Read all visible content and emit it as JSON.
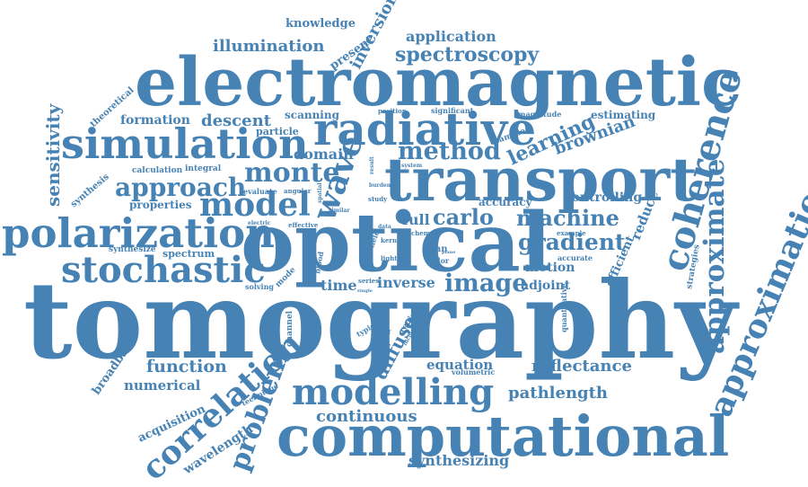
{
  "palette": {
    "word": "#4682b4",
    "background": "#ffffff"
  },
  "words": [
    {
      "text": "tomography",
      "weight": 100
    },
    {
      "text": "optical",
      "weight": 76
    },
    {
      "text": "electromagnetic",
      "weight": 62
    },
    {
      "text": "transport",
      "weight": 56
    },
    {
      "text": "computational",
      "weight": 52
    },
    {
      "text": "radiative",
      "weight": 44
    },
    {
      "text": "simulation",
      "weight": 40
    },
    {
      "text": "polarization",
      "weight": 39
    },
    {
      "text": "stochastic",
      "weight": 36
    },
    {
      "text": "modelling",
      "weight": 36
    },
    {
      "text": "coherence",
      "weight": 35
    },
    {
      "text": "correlation",
      "weight": 33
    },
    {
      "text": "approximation",
      "weight": 33
    },
    {
      "text": "approximate",
      "weight": 30
    },
    {
      "text": "problem",
      "weight": 30
    },
    {
      "text": "wave",
      "weight": 30
    },
    {
      "text": "model",
      "weight": 30
    },
    {
      "text": "approach",
      "weight": 28
    },
    {
      "text": "monte",
      "weight": 26
    },
    {
      "text": "method",
      "weight": 26
    },
    {
      "text": "image",
      "weight": 25
    },
    {
      "text": "gradient",
      "weight": 24
    },
    {
      "text": "machine",
      "weight": 23
    },
    {
      "text": "carlo",
      "weight": 22
    },
    {
      "text": "spectroscopy",
      "weight": 20
    },
    {
      "text": "learning",
      "weight": 20
    },
    {
      "text": "sensitivity",
      "weight": 18
    },
    {
      "text": "diffuse",
      "weight": 18
    },
    {
      "text": "function",
      "weight": 18
    },
    {
      "text": "continuous",
      "weight": 17
    },
    {
      "text": "descent",
      "weight": 17
    },
    {
      "text": "illumination",
      "weight": 17
    },
    {
      "text": "inversion",
      "weight": 17
    },
    {
      "text": "brownian",
      "weight": 17
    },
    {
      "text": "reflectance",
      "weight": 17
    },
    {
      "text": "pathlength",
      "weight": 17
    },
    {
      "text": "synthesizing",
      "weight": 15
    },
    {
      "text": "application",
      "weight": 15
    },
    {
      "text": "domain",
      "weight": 15
    },
    {
      "text": "full",
      "weight": 15
    },
    {
      "text": "inverse",
      "weight": 15
    },
    {
      "text": "time",
      "weight": 15
    },
    {
      "text": "numerical",
      "weight": 14
    },
    {
      "text": "equation",
      "weight": 14
    },
    {
      "text": "reduce",
      "weight": 14
    },
    {
      "text": "motion",
      "weight": 14
    },
    {
      "text": "wavelength",
      "weight": 13
    },
    {
      "text": "formation",
      "weight": 13
    },
    {
      "text": "adjoint",
      "weight": 13
    },
    {
      "text": "controlling",
      "weight": 13
    },
    {
      "text": "efficient",
      "weight": 13
    },
    {
      "text": "knowledge",
      "weight": 12
    },
    {
      "text": "present",
      "weight": 12
    },
    {
      "text": "acquisition",
      "weight": 12
    },
    {
      "text": "broadband",
      "weight": 12
    },
    {
      "text": "scanning",
      "weight": 12
    },
    {
      "text": "estimating",
      "weight": 12
    },
    {
      "text": "accuracy",
      "weight": 12
    },
    {
      "text": "particle",
      "weight": 11
    },
    {
      "text": "properties",
      "weight": 11
    },
    {
      "text": "spectrum",
      "weight": 11
    },
    {
      "text": "synthesis",
      "weight": 10
    },
    {
      "text": "theoretical",
      "weight": 10
    },
    {
      "text": "calculation",
      "weight": 10
    },
    {
      "text": "integral",
      "weight": 10
    },
    {
      "text": "evaluate",
      "weight": 9
    },
    {
      "text": "synthesize",
      "weight": 9
    },
    {
      "text": "solving",
      "weight": 9
    },
    {
      "text": "mode",
      "weight": 9
    },
    {
      "text": "scan",
      "weight": 10
    },
    {
      "text": "taylor",
      "weight": 9
    },
    {
      "text": "regime",
      "weight": 9
    },
    {
      "text": "channel",
      "weight": 9
    },
    {
      "text": "typical",
      "weight": 9
    },
    {
      "text": "technique",
      "weight": 9
    },
    {
      "text": "volumetric",
      "weight": 9
    },
    {
      "text": "quantitative",
      "weight": 9
    },
    {
      "text": "strategies",
      "weight": 9
    },
    {
      "text": "accurate",
      "weight": 9
    },
    {
      "text": "sample",
      "weight": 9
    },
    {
      "text": "magnitude",
      "weight": 8
    },
    {
      "text": "significant",
      "weight": 8
    },
    {
      "text": "position",
      "weight": 7
    },
    {
      "text": "angular",
      "weight": 8
    },
    {
      "text": "spatial",
      "weight": 7
    },
    {
      "text": "study",
      "weight": 7
    },
    {
      "text": "kernel",
      "weight": 8
    },
    {
      "text": "scheme",
      "weight": 7
    },
    {
      "text": "example",
      "weight": 7
    },
    {
      "text": "electric",
      "weight": 7
    },
    {
      "text": "effective",
      "weight": 8
    },
    {
      "text": "burden",
      "weight": 7
    },
    {
      "text": "light",
      "weight": 8
    },
    {
      "text": "series",
      "weight": 8
    },
    {
      "text": "field",
      "weight": 9
    },
    {
      "text": "blood",
      "weight": 8
    },
    {
      "text": "system",
      "weight": 7
    },
    {
      "text": "result",
      "weight": 7
    },
    {
      "text": "incident",
      "weight": 7
    },
    {
      "text": "similar",
      "weight": 7
    },
    {
      "text": "data",
      "weight": 7
    },
    {
      "text": "wolf",
      "weight": 7
    },
    {
      "text": "single",
      "weight": 6
    },
    {
      "text": "plane",
      "weight": 6
    }
  ]
}
